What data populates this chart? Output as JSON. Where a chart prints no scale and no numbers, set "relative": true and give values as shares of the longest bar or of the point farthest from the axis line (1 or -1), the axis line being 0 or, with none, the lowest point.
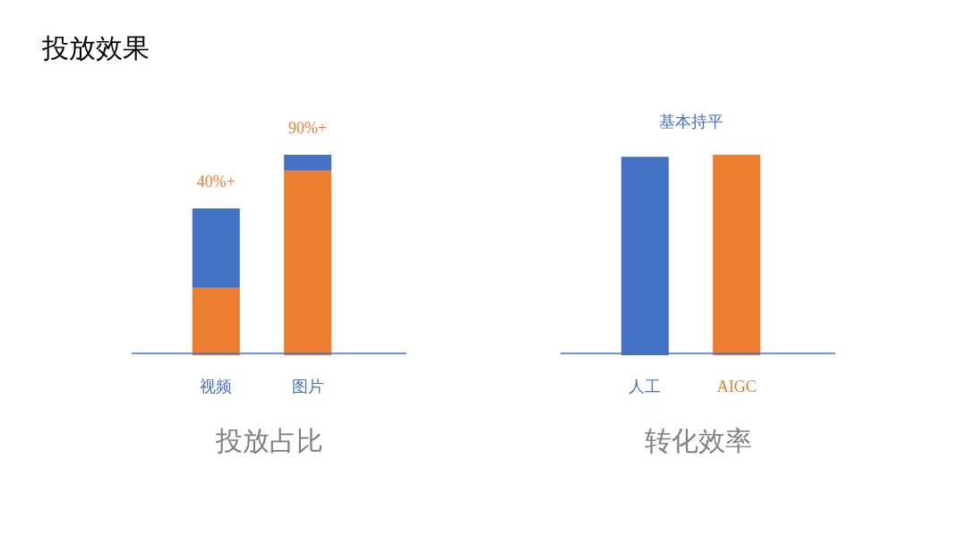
{
  "chart_data": [
    {
      "type": "bar",
      "title": "投放占比",
      "categories": [
        "视频",
        "图片"
      ],
      "stacked": true,
      "relative": true,
      "series": [
        {
          "color": "#ed7d31",
          "values": [
            0.33,
            0.92
          ]
        },
        {
          "color": "#4472c4",
          "values": [
            0.4,
            0.08
          ]
        }
      ],
      "annotations": [
        "投放效果",
        {
          "text": "40%+",
          "x": "视频",
          "y": 0.73
        },
        {
          "text": "90%+",
          "x": "图片",
          "y": 1
        }
      ]
    },
    {
      "type": "bar",
      "title": "转化效率",
      "categories": [
        "人工",
        "AIGC"
      ],
      "relative": true,
      "values": [
        0.99,
        1
      ],
      "colors": [
        "#4472c4",
        "#ed7d31"
      ],
      "annotations": [
        "基本持平"
      ]
    }
  ]
}
